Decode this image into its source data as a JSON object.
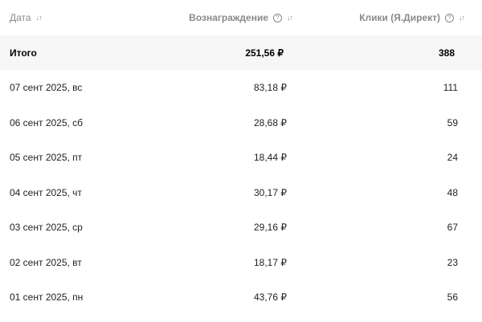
{
  "header": {
    "date": "Дата",
    "reward": "Вознаграждение",
    "clicks": "Клики (Я.Директ)",
    "help_icon": "?",
    "sort_icon": "↓↑"
  },
  "total": {
    "label": "Итого",
    "reward": "251,56 ₽",
    "clicks": "388"
  },
  "rows": [
    {
      "date": "07 сент 2025, вс",
      "reward": "83,18 ₽",
      "clicks": "111"
    },
    {
      "date": "06 сент 2025, сб",
      "reward": "28,68 ₽",
      "clicks": "59"
    },
    {
      "date": "05 сент 2025, пт",
      "reward": "18,44 ₽",
      "clicks": "24"
    },
    {
      "date": "04 сент 2025, чт",
      "reward": "30,17 ₽",
      "clicks": "48"
    },
    {
      "date": "03 сент 2025, ср",
      "reward": "29,16 ₽",
      "clicks": "67"
    },
    {
      "date": "02 сент 2025, вт",
      "reward": "18,17 ₽",
      "clicks": "23"
    },
    {
      "date": "01 сент 2025, пн",
      "reward": "43,76 ₽",
      "clicks": "56"
    }
  ]
}
